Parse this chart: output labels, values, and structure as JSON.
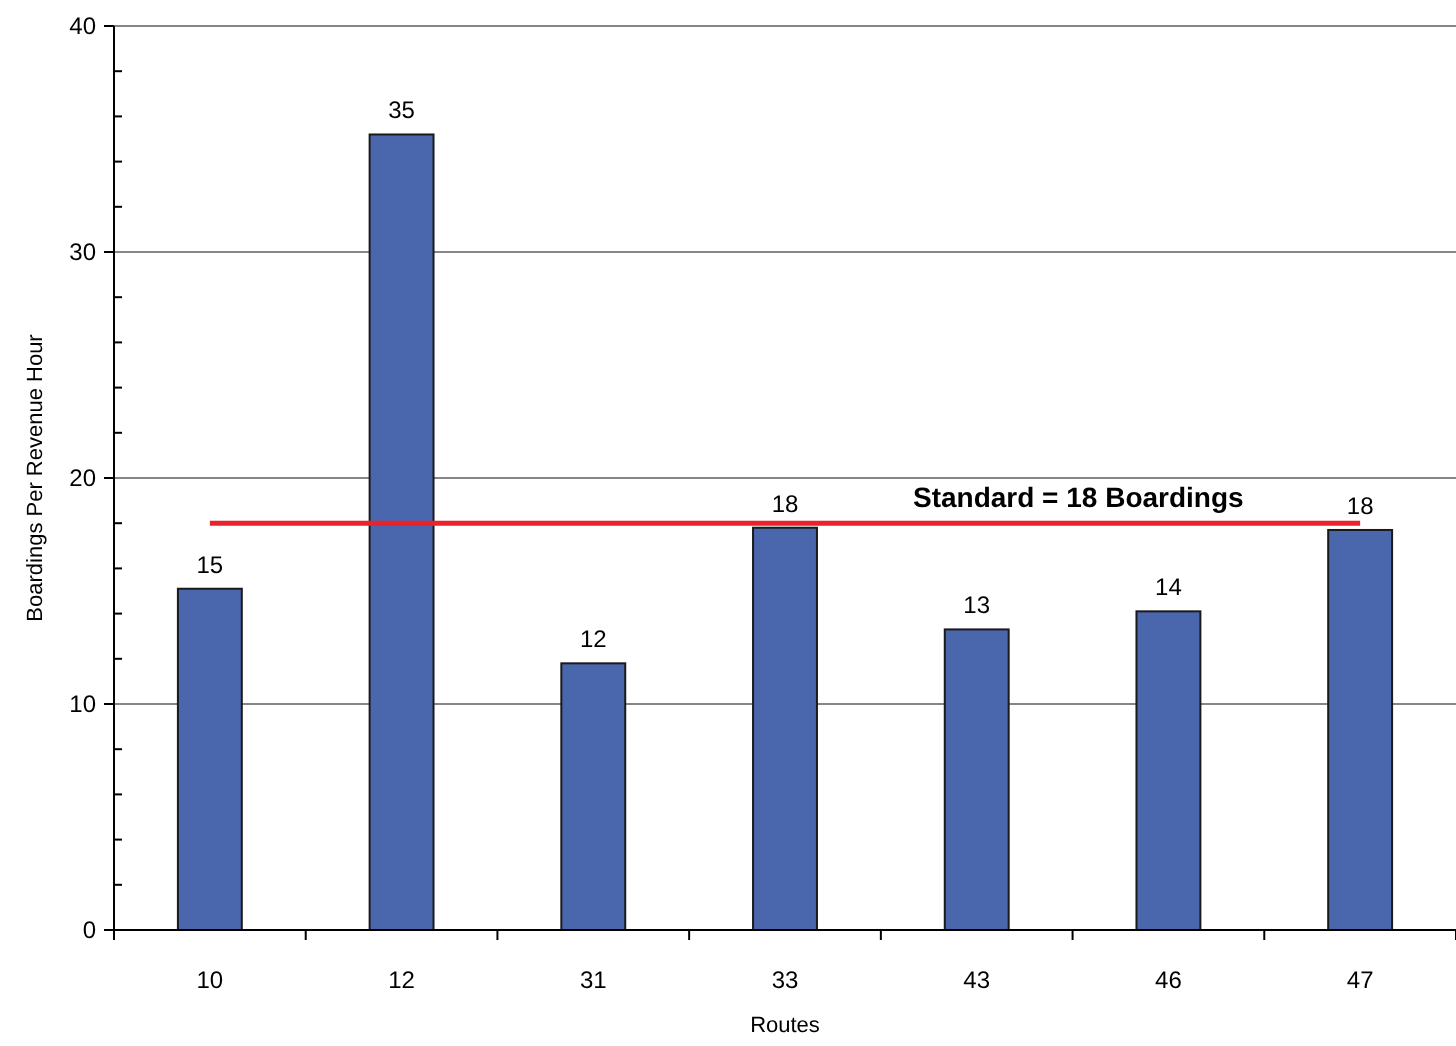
{
  "chart_data": {
    "type": "bar",
    "xlabel": "Routes",
    "ylabel": "Boardings Per Revenue Hour",
    "categories": [
      "10",
      "12",
      "31",
      "33",
      "43",
      "46",
      "47"
    ],
    "values": [
      15.1,
      35.2,
      11.8,
      17.8,
      13.3,
      14.1,
      17.7
    ],
    "value_labels": [
      "15",
      "35",
      "12",
      "18",
      "13",
      "14",
      "18"
    ],
    "color": "#4a66ac",
    "ylim": [
      0,
      40
    ],
    "yticks": [
      0,
      {
        "value": 2,
        "label": null
      },
      {
        "value": 4,
        "label": null
      },
      {
        "value": 6,
        "label": null
      },
      {
        "value": 8,
        "label": null
      },
      10,
      {
        "value": 12,
        "label": null
      },
      {
        "value": 14,
        "label": null
      },
      {
        "value": 16,
        "label": null
      },
      {
        "value": 18,
        "label": null
      },
      20,
      {
        "value": 22,
        "label": null
      },
      {
        "value": 24,
        "label": null
      },
      {
        "value": 26,
        "label": null
      },
      {
        "value": 28,
        "label": null
      },
      30,
      {
        "value": 32,
        "label": null
      },
      {
        "value": 34,
        "label": null
      },
      {
        "value": 36,
        "label": null
      },
      {
        "value": 38,
        "label": null
      },
      40
    ],
    "grid": "y",
    "ref_lines": [
      {
        "axis": "y",
        "value": 18,
        "label": "Standard = 18 Boardings",
        "color": "#e8232b"
      }
    ]
  }
}
